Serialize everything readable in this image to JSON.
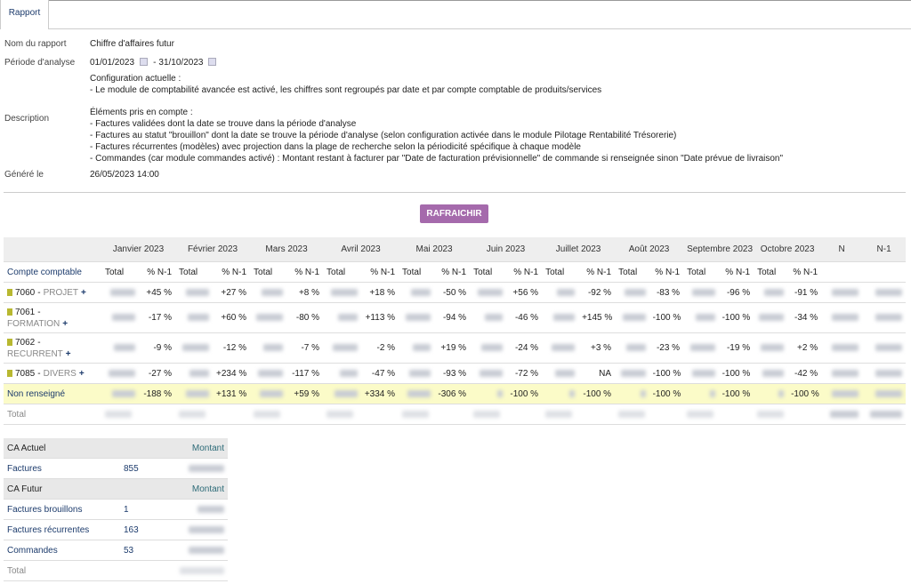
{
  "tab": "Rapport",
  "info": {
    "name_label": "Nom du rapport",
    "name": "Chiffre d'affaires futur",
    "period_label": "Période d'analyse",
    "date_from": "01/01/2023",
    "date_sep": "-",
    "date_to": "31/10/2023",
    "config_lines": [
      "Configuration actuelle :",
      "- Le module de comptabilité avancée est activé, les chiffres sont regroupés par date et par compte comptable de produits/services"
    ],
    "description_label": "Description",
    "desc_lines": [
      "Éléments pris en compte :",
      "- Factures validées dont la date se trouve dans la période d'analyse",
      "- Factures au statut \"brouillon\" dont la date se trouve la période d'analyse (selon configuration activée dans le module Pilotage Rentabilité Trésorerie)",
      "- Factures récurrentes (modèles) avec projection dans la plage de recherche selon la périodicité spécifique à chaque modèle",
      "- Commandes (car module commandes activé) : Montant restant à facturer par \"Date de facturation prévisionnelle\" de commande si renseignée sinon \"Date prévue de livraison\""
    ],
    "generated_label": "Généré le",
    "generated": "26/05/2023 14:00"
  },
  "button": "RAFRAICHIR",
  "table": {
    "months": [
      "Janvier 2023",
      "Février 2023",
      "Mars 2023",
      "Avril 2023",
      "Mai 2023",
      "Juin 2023",
      "Juillet 2023",
      "Août 2023",
      "Septembre 2023",
      "Octobre 2023"
    ],
    "n": "N",
    "n1": "N-1",
    "account_header": "Compte comptable",
    "total_header": "Total",
    "pct_header": "% N-1",
    "account_sep": "-",
    "plus": "+",
    "rows": [
      {
        "code": "7060",
        "name": "PROJET",
        "pct": [
          "+45 %",
          "+27 %",
          "+8 %",
          "+18 %",
          "-50 %",
          "+56 %",
          "-92 %",
          "-83 %",
          "-96 %",
          "-91 %"
        ]
      },
      {
        "code": "7061",
        "name": "FORMATION",
        "pct": [
          "-17 %",
          "+60 %",
          "-80 %",
          "+113 %",
          "-94 %",
          "-46 %",
          "+145 %",
          "-100 %",
          "-100 %",
          "-34 %"
        ]
      },
      {
        "code": "7062",
        "name": "RECURRENT",
        "pct": [
          "-9 %",
          "-12 %",
          "-7 %",
          "-2 %",
          "+19 %",
          "-24 %",
          "+3 %",
          "-23 %",
          "-19 %",
          "+2 %"
        ]
      },
      {
        "code": "7085",
        "name": "DIVERS",
        "pct": [
          "-27 %",
          "+234 %",
          "-117 %",
          "-47 %",
          "-93 %",
          "-72 %",
          "NA",
          "-100 %",
          "-100 %",
          "-42 %"
        ]
      }
    ],
    "unfilled": {
      "label": "Non renseigné",
      "pct": [
        "-188 %",
        "+131 %",
        "+59 %",
        "+334 %",
        "-306 %",
        "-100 %",
        "-100 %",
        "-100 %",
        "-100 %",
        "-100 %"
      ]
    },
    "total_label": "Total"
  },
  "summary": {
    "current_header": "CA Actuel",
    "amount_header": "Montant",
    "current_rows": [
      {
        "label": "Factures",
        "count": "855"
      }
    ],
    "future_header": "CA Futur",
    "future_rows": [
      {
        "label": "Factures brouillons",
        "count": "1"
      },
      {
        "label": "Factures récurrentes",
        "count": "163"
      },
      {
        "label": "Commandes",
        "count": "53"
      }
    ],
    "total_label": "Total"
  }
}
